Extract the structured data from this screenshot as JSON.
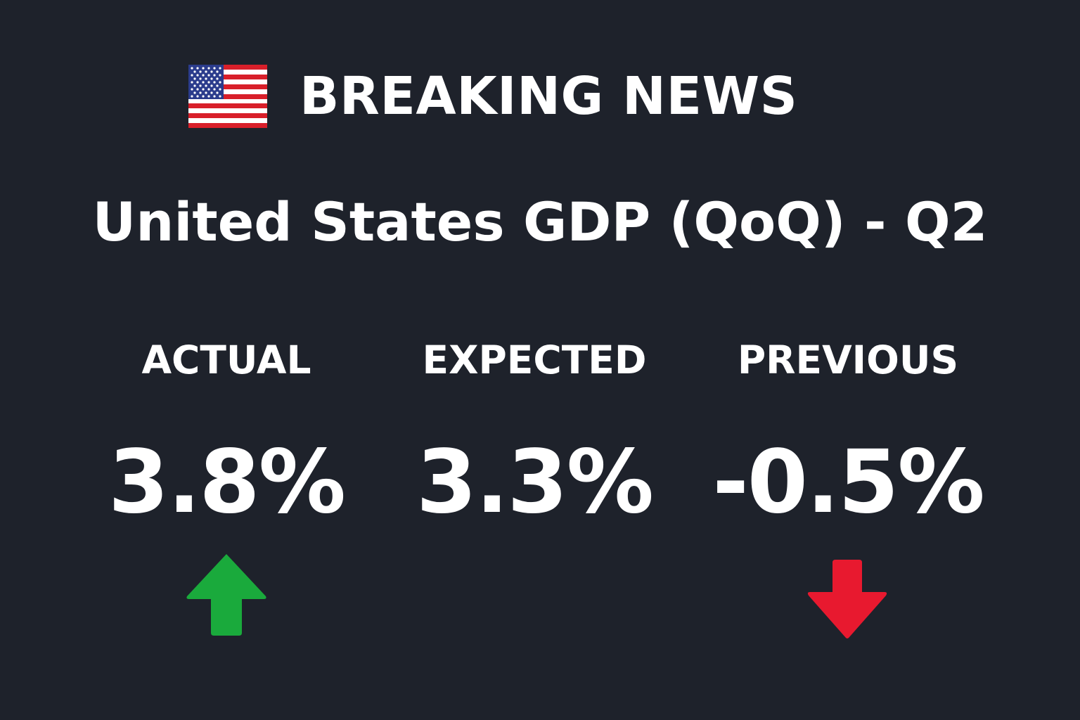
{
  "header": {
    "flag_icon": "us-flag-icon",
    "title": "BREAKING NEWS"
  },
  "headline": "United States GDP (QoQ) - Q2",
  "metrics": [
    {
      "label": "ACTUAL",
      "value": "3.8%",
      "trend": "up",
      "trend_icon": "arrow-up-icon",
      "trend_color": "#1aaa3c"
    },
    {
      "label": "EXPECTED",
      "value": "3.3%",
      "trend": "none"
    },
    {
      "label": "PREVIOUS",
      "value": "-0.5%",
      "trend": "down",
      "trend_icon": "arrow-down-icon",
      "trend_color": "#e8192f"
    }
  ],
  "colors": {
    "background": "#1e222b",
    "text": "#ffffff",
    "up": "#1aaa3c",
    "down": "#e8192f",
    "flag_red": "#d81f2a",
    "flag_blue": "#2b3c8c"
  }
}
